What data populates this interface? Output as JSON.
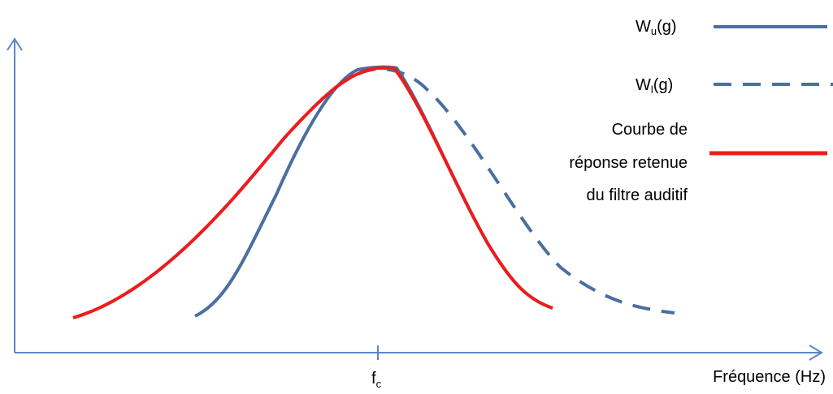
{
  "axes": {
    "x_axis_label": "Fréquence (Hz)",
    "center_tick_main": "f",
    "center_tick_sub": "c"
  },
  "legend": {
    "wu": {
      "main": "W",
      "sub": "u",
      "suffix": "(g)",
      "style": "solid",
      "color": "#4a6f9f"
    },
    "wl": {
      "main": "W",
      "sub": "l",
      "suffix": "(g)",
      "style": "dashed",
      "color": "#4a6f9f"
    },
    "retained": {
      "lines": [
        "Courbe de",
        "réponse retenue",
        "du filtre auditif"
      ],
      "style": "solid",
      "color": "#ee1c1c"
    }
  },
  "colors": {
    "axis": "#5b87c5",
    "blue_curve": "#4a6f9f",
    "red_curve": "#ee1c1c"
  }
}
